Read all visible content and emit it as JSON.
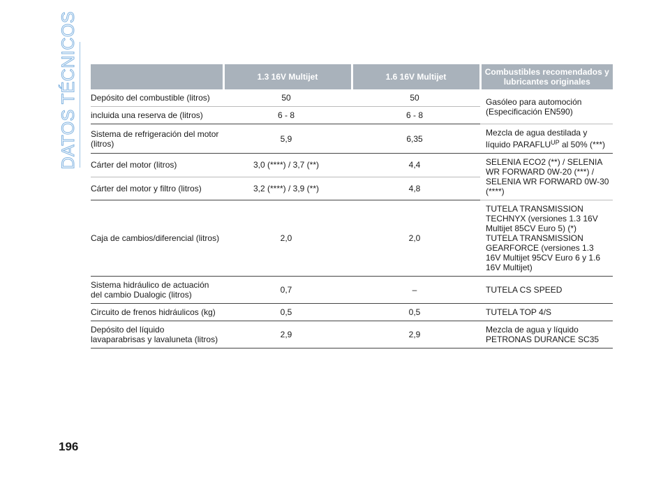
{
  "section_title": "DATOS TÉCNICOS",
  "page_number": "196",
  "table": {
    "headers": [
      "",
      "1.3 16V Multijet",
      "1.6 16V Multijet",
      "Combustibles recomendados y lubricantes originales"
    ],
    "rows": [
      {
        "label": "Depósito del combustible (litros)",
        "v1": "50",
        "v2": "50"
      },
      {
        "label": "incluida una reserva de (litros)",
        "v1": "6 - 8",
        "v2": "6 - 8"
      },
      {
        "label": "Sistema de refrigeración del motor (litros)",
        "v1": "5,9",
        "v2": "6,35"
      },
      {
        "label": "Cárter del motor (litros)",
        "v1": "3,0 (****) / 3,7 (**)",
        "v2": "4,4"
      },
      {
        "label": "Cárter del motor y filtro (litros)",
        "v1": "3,2 (****) / 3,9 (**)",
        "v2": "4,8"
      },
      {
        "label": "Caja de cambios/diferencial (litros)",
        "v1": "2,0",
        "v2": "2,0"
      },
      {
        "label": "Sistema hidráulico de actuación del cambio Dualogic (litros)",
        "v1": "0,7",
        "v2": "–"
      },
      {
        "label": "Circuito de frenos hidráulicos (kg)",
        "v1": "0,5",
        "v2": "0,5"
      },
      {
        "label": "Depósito del líquido lavaparabrisas y lavaluneta (litros)",
        "v1": "2,9",
        "v2": "2,9"
      }
    ],
    "recommendations": {
      "fuel": "Gasóleo para automoción (Especificación EN590)",
      "coolant_a": "Mezcla de agua destilada y líquido PARAFLU",
      "coolant_sup": "UP",
      "coolant_b": " al 50% (***)",
      "engine_oil": "SELENIA ECO2 (**) / SELENIA WR FORWARD 0W-20 (***) / SELENIA WR FORWARD 0W-30 (****)",
      "gearbox": "TUTELA TRANSMISSION TECHNYX (versiones 1.3 16V Multijet 85CV Euro 5) (*) TUTELA TRANSMISSION GEARFORCE (versiones 1.3 16V Multijet 95CV Euro 6 y 1.6 16V Multijet)",
      "dualogic": "TUTELA CS SPEED",
      "brakes": "TUTELA TOP 4/S",
      "washer": "Mezcla de agua y líquido PETRONAS DURANCE SC35"
    }
  }
}
